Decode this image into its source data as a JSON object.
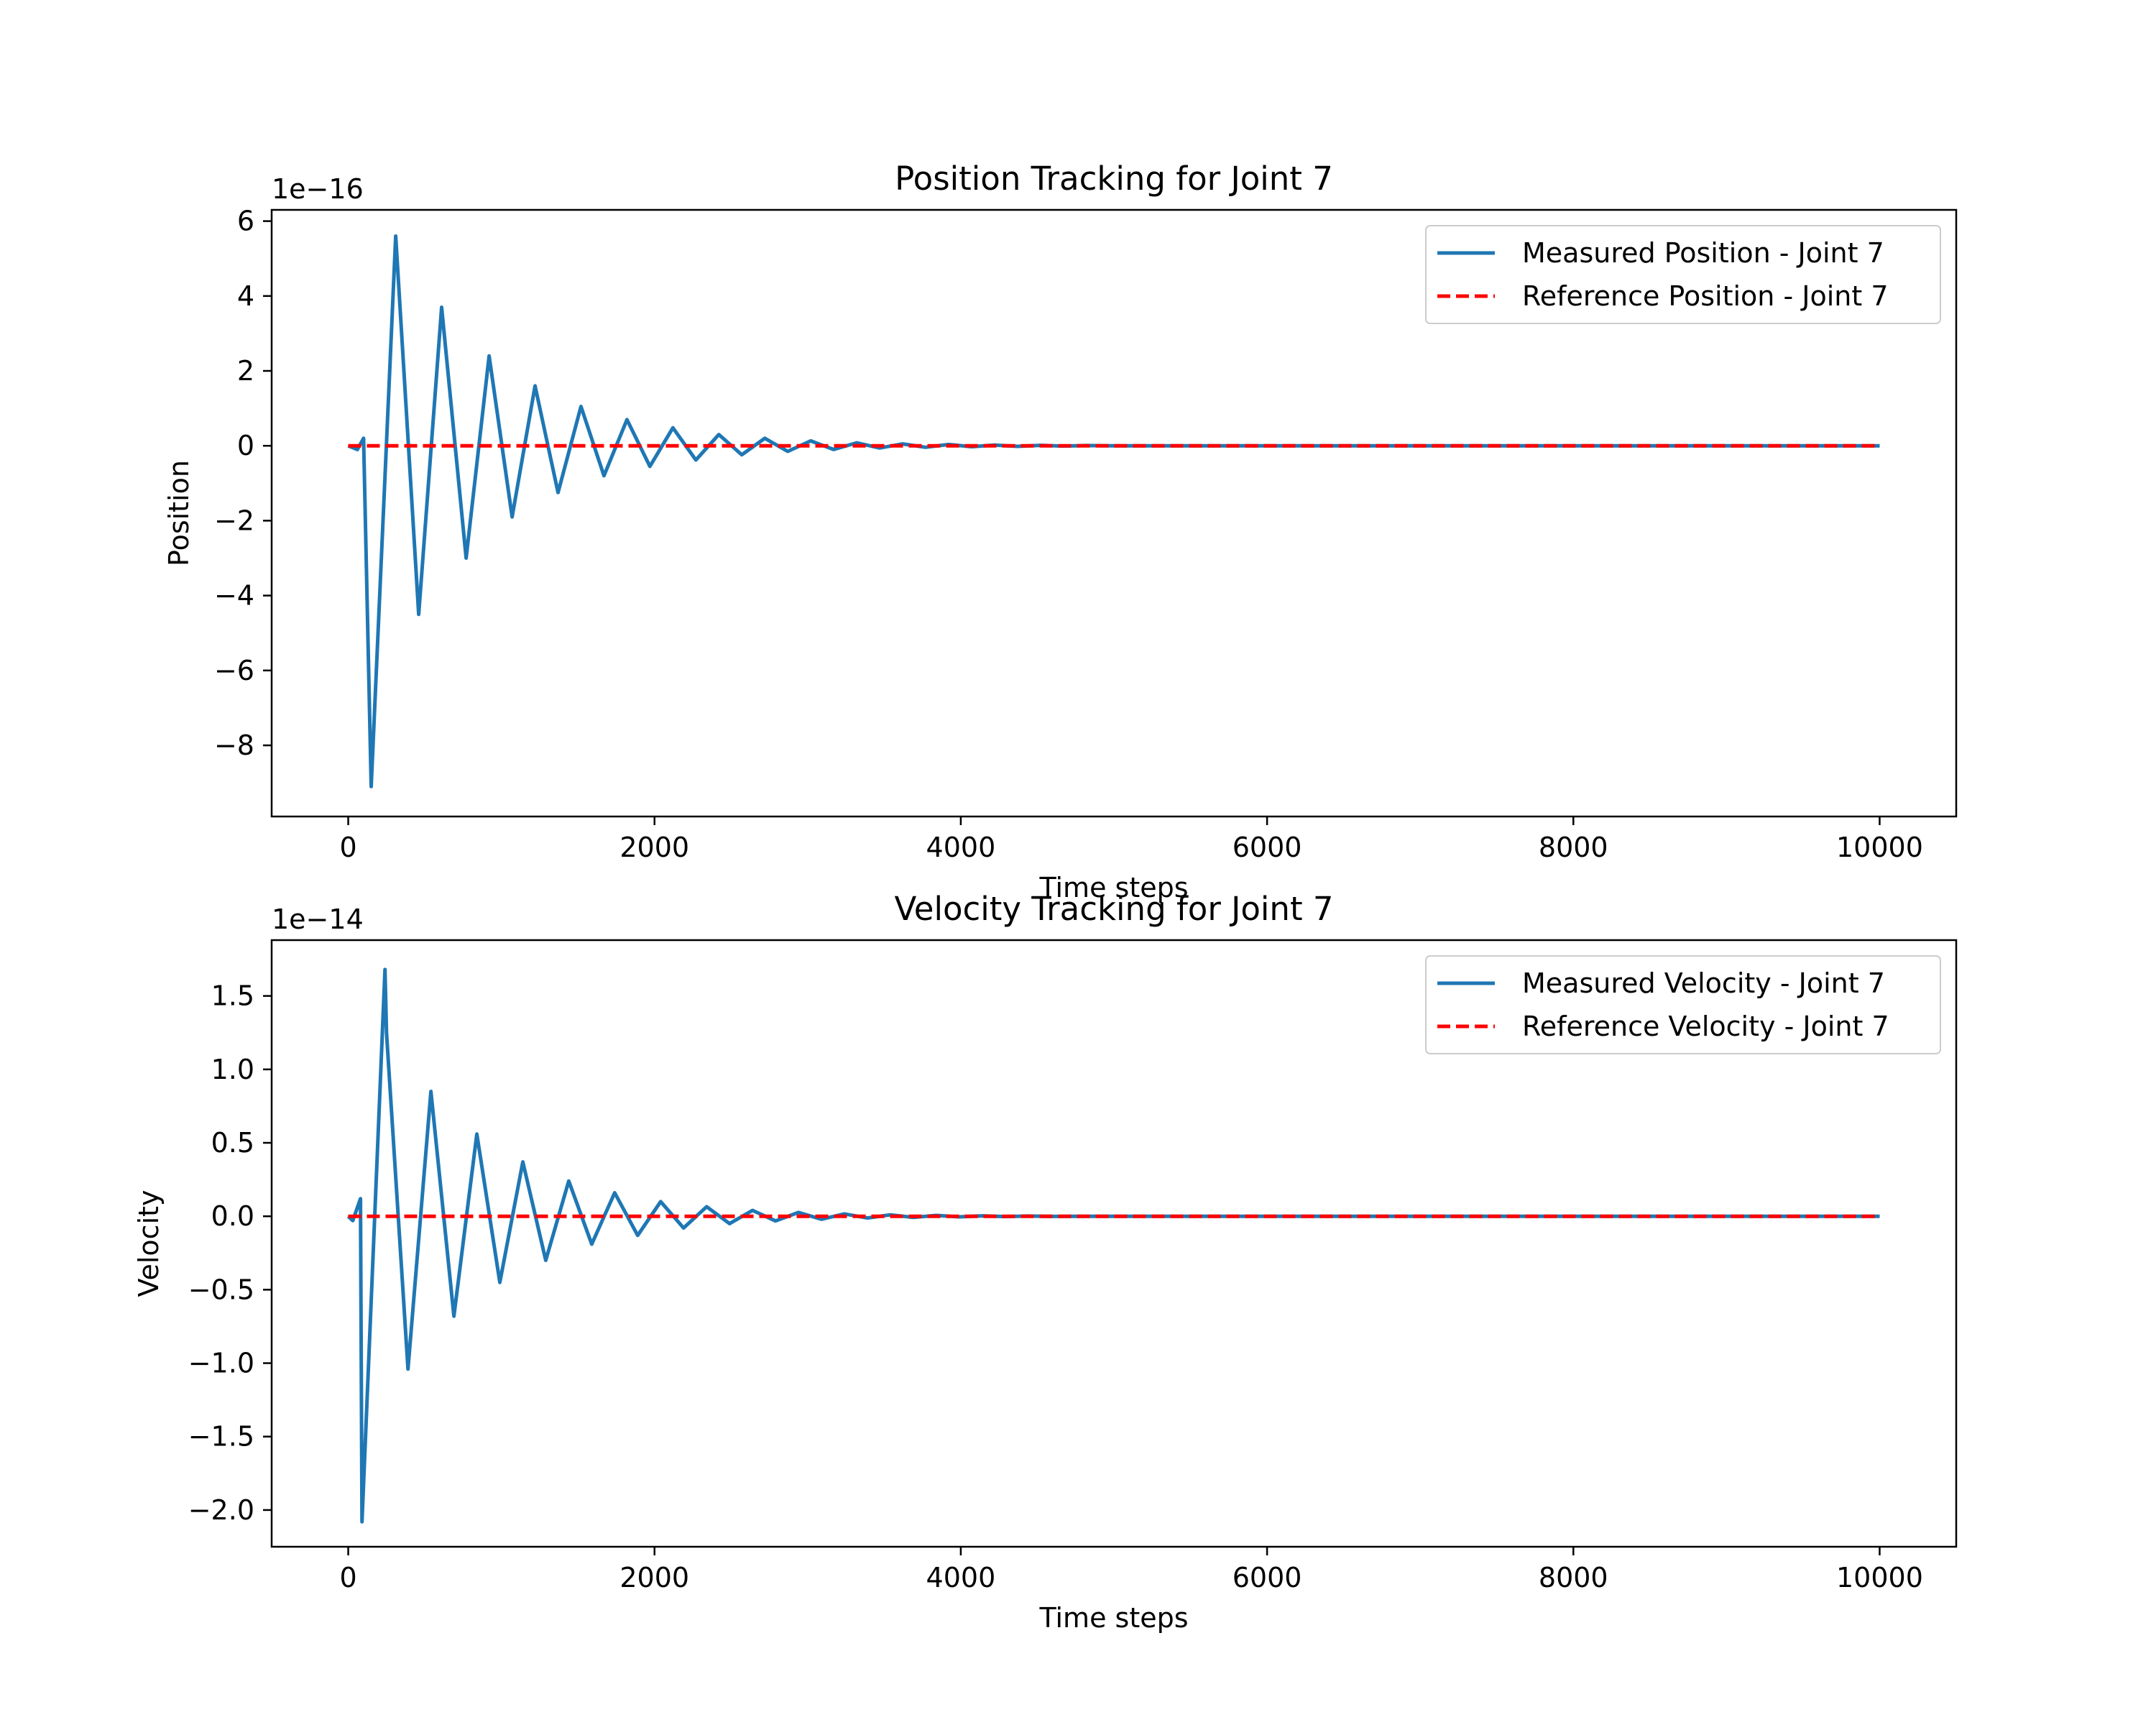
{
  "chart_data": [
    {
      "type": "line",
      "title": "Position Tracking for Joint 7",
      "xlabel": "Time steps",
      "ylabel": "Position",
      "offset_text": "1e−16",
      "scale": 1e-16,
      "xlim": [
        -500,
        10500
      ],
      "ylim": [
        -9.9,
        6.3
      ],
      "xticks": [
        0,
        2000,
        4000,
        6000,
        8000,
        10000
      ],
      "xtick_labels": [
        "0",
        "2000",
        "4000",
        "6000",
        "8000",
        "10000"
      ],
      "yticks": [
        6,
        4,
        2,
        0,
        -2,
        -4,
        -6,
        -8
      ],
      "ytick_labels": [
        "6",
        "4",
        "2",
        "0",
        "−2",
        "−4",
        "−6",
        "−8"
      ],
      "grid": false,
      "legend_position": "upper right",
      "series": [
        {
          "name": "Measured Position - Joint 7",
          "style": "solid",
          "color": "#1f77b4",
          "x": [
            0,
            60,
            100,
            150,
            310,
            460,
            610,
            770,
            920,
            1070,
            1220,
            1370,
            1520,
            1670,
            1820,
            1970,
            2120,
            2270,
            2420,
            2570,
            2720,
            2870,
            3020,
            3170,
            3320,
            3470,
            3620,
            3770,
            3920,
            4070,
            4220,
            4370,
            4520,
            4670,
            4820,
            5000,
            10000
          ],
          "y": [
            0,
            -0.1,
            0.2,
            -9.1,
            5.6,
            -4.5,
            3.7,
            -3.0,
            2.4,
            -1.9,
            1.6,
            -1.25,
            1.05,
            -0.8,
            0.7,
            -0.55,
            0.48,
            -0.38,
            0.3,
            -0.24,
            0.2,
            -0.15,
            0.13,
            -0.1,
            0.08,
            -0.06,
            0.05,
            -0.04,
            0.035,
            -0.025,
            0.02,
            -0.015,
            0.012,
            -0.008,
            0.006,
            0,
            0
          ]
        },
        {
          "name": "Reference Position - Joint 7",
          "style": "dashed",
          "color": "#ff0000",
          "x": [
            0,
            10000
          ],
          "y": [
            0,
            0
          ]
        }
      ]
    },
    {
      "type": "line",
      "title": "Velocity Tracking for Joint 7",
      "xlabel": "Time steps",
      "ylabel": "Velocity",
      "offset_text": "1e−14",
      "scale": 1e-14,
      "xlim": [
        -500,
        10500
      ],
      "ylim": [
        -2.25,
        1.88
      ],
      "xticks": [
        0,
        2000,
        4000,
        6000,
        8000,
        10000
      ],
      "xtick_labels": [
        "0",
        "2000",
        "4000",
        "6000",
        "8000",
        "10000"
      ],
      "yticks": [
        1.5,
        1.0,
        0.5,
        0.0,
        -0.5,
        -1.0,
        -1.5,
        -2.0
      ],
      "ytick_labels": [
        "1.5",
        "1.0",
        "0.5",
        "0.0",
        "−0.5",
        "−1.0",
        "−1.5",
        "−2.0"
      ],
      "grid": false,
      "legend_position": "upper right",
      "series": [
        {
          "name": "Measured Velocity - Joint 7",
          "style": "solid",
          "color": "#1f77b4",
          "x": [
            0,
            30,
            80,
            90,
            240,
            250,
            390,
            540,
            690,
            840,
            990,
            1140,
            1290,
            1440,
            1590,
            1740,
            1890,
            2040,
            2190,
            2340,
            2490,
            2640,
            2790,
            2940,
            3090,
            3240,
            3390,
            3540,
            3690,
            3840,
            3990,
            4140,
            4290,
            4440,
            4590,
            4800,
            10000
          ],
          "y": [
            0,
            -0.03,
            0.12,
            -2.08,
            1.68,
            1.25,
            -1.04,
            0.85,
            -0.68,
            0.56,
            -0.45,
            0.37,
            -0.3,
            0.24,
            -0.19,
            0.16,
            -0.13,
            0.1,
            -0.08,
            0.065,
            -0.05,
            0.04,
            -0.032,
            0.026,
            -0.02,
            0.016,
            -0.012,
            0.01,
            -0.008,
            0.006,
            -0.004,
            0.003,
            -0.002,
            0.0015,
            -0.001,
            0,
            0
          ]
        },
        {
          "name": "Reference Velocity - Joint 7",
          "style": "dashed",
          "color": "#ff0000",
          "x": [
            0,
            10000
          ],
          "y": [
            0,
            0
          ]
        }
      ]
    }
  ]
}
